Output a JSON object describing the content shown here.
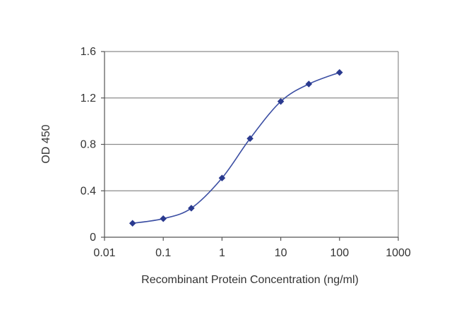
{
  "chart_data": {
    "type": "line",
    "title": "",
    "xlabel": "Recombinant Protein Concentration (ng/ml)",
    "ylabel": "OD 450",
    "x_scale": "log",
    "xlim": [
      0.01,
      1000
    ],
    "ylim": [
      0,
      1.6
    ],
    "x_ticks": [
      0.01,
      0.1,
      1,
      10,
      100,
      1000
    ],
    "x_tick_labels": [
      "0.01",
      "0.1",
      "1",
      "10",
      "100",
      "1000"
    ],
    "y_ticks": [
      0,
      0.4,
      0.8,
      1.2,
      1.6
    ],
    "y_tick_labels": [
      "0",
      "0.4",
      "0.8",
      "1.2",
      "1.6"
    ],
    "grid": "horizontal",
    "legend": "none",
    "series": [
      {
        "x": [
          0.03,
          0.1,
          0.3,
          1,
          3,
          10,
          30,
          100
        ],
        "y": [
          0.12,
          0.16,
          0.25,
          0.51,
          0.85,
          1.17,
          1.32,
          1.42
        ]
      }
    ],
    "colors": {
      "line": "#3b4ea3",
      "marker": "#2a3a8f",
      "grid": "#8c8c8c",
      "axis": "#555555"
    }
  }
}
